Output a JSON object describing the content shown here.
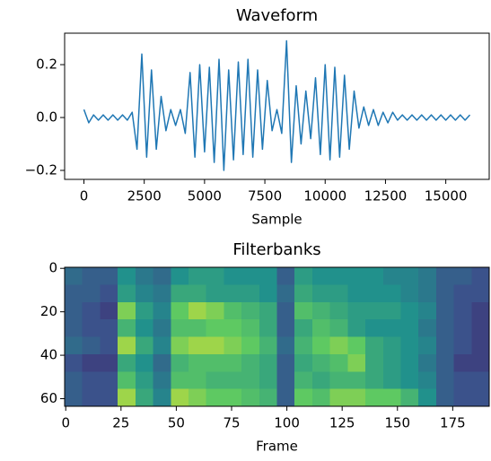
{
  "chart_data": [
    {
      "type": "line",
      "title": "Waveform",
      "x_label": "Sample",
      "color": "#1f77b4",
      "x": [
        0,
        200,
        400,
        600,
        800,
        1000,
        1200,
        1400,
        1600,
        1800,
        2000,
        2200,
        2400,
        2600,
        2800,
        3000,
        3200,
        3400,
        3600,
        3800,
        4000,
        4200,
        4400,
        4600,
        4800,
        5000,
        5200,
        5400,
        5600,
        5800,
        6000,
        6200,
        6400,
        6600,
        6800,
        7000,
        7200,
        7400,
        7600,
        7800,
        8000,
        8200,
        8400,
        8600,
        8800,
        9000,
        9200,
        9400,
        9600,
        9800,
        10000,
        10200,
        10400,
        10600,
        10800,
        11000,
        11200,
        11400,
        11600,
        11800,
        12000,
        12200,
        12400,
        12600,
        12800,
        13000,
        13200,
        13400,
        13600,
        13800,
        14000,
        14200,
        14400,
        14600,
        14800,
        15000,
        15200,
        15400,
        15600,
        15800,
        16000
      ],
      "values": [
        0.03,
        -0.02,
        0.01,
        -0.01,
        0.01,
        -0.01,
        0.01,
        -0.01,
        0.01,
        -0.01,
        0.02,
        -0.12,
        0.24,
        -0.15,
        0.18,
        -0.12,
        0.08,
        -0.05,
        0.03,
        -0.03,
        0.03,
        -0.06,
        0.17,
        -0.15,
        0.2,
        -0.13,
        0.19,
        -0.17,
        0.22,
        -0.2,
        0.18,
        -0.16,
        0.21,
        -0.14,
        0.22,
        -0.15,
        0.18,
        -0.12,
        0.14,
        -0.05,
        0.03,
        -0.06,
        0.29,
        -0.17,
        0.12,
        -0.1,
        0.1,
        -0.08,
        0.15,
        -0.14,
        0.2,
        -0.16,
        0.19,
        -0.15,
        0.16,
        -0.12,
        0.1,
        -0.04,
        0.04,
        -0.03,
        0.03,
        -0.03,
        0.02,
        -0.02,
        0.02,
        -0.01,
        0.01,
        -0.01,
        0.01,
        -0.01,
        0.01,
        -0.01,
        0.01,
        -0.01,
        0.01,
        -0.01,
        0.01,
        -0.01,
        0.01,
        -0.01,
        0.01
      ],
      "xlim": [
        -800,
        16800
      ],
      "xticks": [
        0,
        2500,
        5000,
        7500,
        10000,
        12500,
        15000
      ],
      "ylim": [
        -0.234,
        0.319
      ],
      "yticks": [
        {
          "value": -0.2,
          "label": "−0.2"
        },
        {
          "value": 0,
          "label": "0.0"
        },
        0.2
      ]
    },
    {
      "type": "heatmap",
      "title": "Filterbanks",
      "x_label": "Frame",
      "colormap": [
        "#440154",
        "#3b528b",
        "#21918c",
        "#5ec962",
        "#fde725"
      ],
      "xlim": [
        -0.5,
        191.5
      ],
      "xticks": [
        0,
        25,
        50,
        75,
        100,
        125,
        150,
        175
      ],
      "ylim": [
        63.5,
        -0.5
      ],
      "yticks": [
        0,
        20,
        40,
        60
      ],
      "z": [
        [
          0.35,
          0.3,
          0.3,
          0.5,
          0.4,
          0.35,
          0.5,
          0.55,
          0.55,
          0.5,
          0.5,
          0.5,
          0.3,
          0.55,
          0.5,
          0.5,
          0.5,
          0.5,
          0.45,
          0.45,
          0.4,
          0.3,
          0.3,
          0.25
        ],
        [
          0.3,
          0.3,
          0.25,
          0.55,
          0.45,
          0.4,
          0.6,
          0.6,
          0.55,
          0.55,
          0.55,
          0.5,
          0.35,
          0.6,
          0.55,
          0.55,
          0.5,
          0.5,
          0.5,
          0.45,
          0.4,
          0.3,
          0.25,
          0.25
        ],
        [
          0.3,
          0.25,
          0.2,
          0.8,
          0.55,
          0.45,
          0.75,
          0.85,
          0.8,
          0.7,
          0.65,
          0.6,
          0.3,
          0.7,
          0.65,
          0.6,
          0.55,
          0.55,
          0.55,
          0.5,
          0.45,
          0.3,
          0.25,
          0.2
        ],
        [
          0.3,
          0.25,
          0.25,
          0.65,
          0.5,
          0.4,
          0.7,
          0.7,
          0.75,
          0.75,
          0.7,
          0.6,
          0.3,
          0.6,
          0.7,
          0.65,
          0.55,
          0.5,
          0.5,
          0.5,
          0.4,
          0.3,
          0.25,
          0.2
        ],
        [
          0.35,
          0.3,
          0.25,
          0.85,
          0.6,
          0.45,
          0.8,
          0.85,
          0.85,
          0.8,
          0.75,
          0.65,
          0.35,
          0.65,
          0.75,
          0.8,
          0.75,
          0.6,
          0.55,
          0.5,
          0.45,
          0.3,
          0.25,
          0.2
        ],
        [
          0.25,
          0.2,
          0.2,
          0.6,
          0.5,
          0.35,
          0.65,
          0.7,
          0.7,
          0.7,
          0.65,
          0.6,
          0.3,
          0.6,
          0.65,
          0.7,
          0.8,
          0.6,
          0.55,
          0.5,
          0.4,
          0.3,
          0.2,
          0.2
        ],
        [
          0.3,
          0.25,
          0.25,
          0.7,
          0.55,
          0.4,
          0.7,
          0.7,
          0.65,
          0.65,
          0.65,
          0.6,
          0.3,
          0.65,
          0.6,
          0.65,
          0.65,
          0.6,
          0.55,
          0.5,
          0.45,
          0.3,
          0.25,
          0.25
        ],
        [
          0.3,
          0.25,
          0.25,
          0.85,
          0.6,
          0.45,
          0.85,
          0.8,
          0.75,
          0.75,
          0.7,
          0.65,
          0.3,
          0.75,
          0.7,
          0.8,
          0.8,
          0.75,
          0.75,
          0.65,
          0.5,
          0.3,
          0.25,
          0.25
        ]
      ]
    }
  ]
}
